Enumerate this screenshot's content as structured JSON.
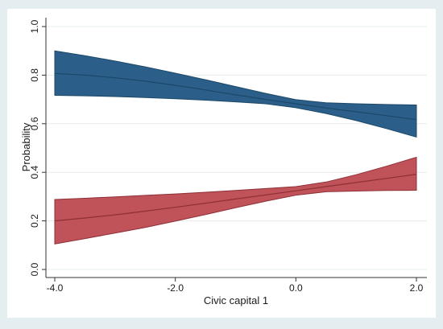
{
  "chart_data": {
    "type": "area",
    "xlabel": "Civic capital 1",
    "ylabel": "Probability",
    "xlim": [
      -4,
      2
    ],
    "ylim": [
      0,
      1
    ],
    "xticks": [
      -4,
      -2,
      0,
      2
    ],
    "xtick_labels": [
      "-4.0",
      "-2.0",
      "0.0",
      "2.0"
    ],
    "yticks": [
      0,
      0.2,
      0.4,
      0.6,
      0.8,
      1.0
    ],
    "ytick_labels": [
      "0.0",
      "0.2",
      "0.4",
      "0.6",
      "0.8",
      "1.0"
    ],
    "grid": "horizontal",
    "legend": "none",
    "x": [
      -4,
      -3.5,
      -3,
      -2.5,
      -2,
      -1.5,
      -1,
      -0.5,
      0,
      0.5,
      1,
      1.5,
      2
    ],
    "series": [
      {
        "color": "#2b5f8a",
        "line_color": "#1c4868",
        "estimate": [
          0.807,
          0.8,
          0.789,
          0.775,
          0.758,
          0.739,
          0.719,
          0.7,
          0.682,
          0.665,
          0.649,
          0.633,
          0.617
        ],
        "upper": [
          0.9,
          0.88,
          0.858,
          0.834,
          0.808,
          0.781,
          0.753,
          0.725,
          0.699,
          0.686,
          0.682,
          0.679,
          0.677
        ],
        "lower": [
          0.717,
          0.715,
          0.712,
          0.708,
          0.703,
          0.697,
          0.69,
          0.682,
          0.666,
          0.642,
          0.613,
          0.58,
          0.545
        ]
      },
      {
        "color": "#c0525a",
        "line_color": "#8e2f36",
        "estimate": [
          0.2,
          0.212,
          0.225,
          0.24,
          0.256,
          0.273,
          0.29,
          0.307,
          0.324,
          0.341,
          0.358,
          0.375,
          0.392
        ],
        "upper": [
          0.288,
          0.293,
          0.299,
          0.305,
          0.311,
          0.318,
          0.325,
          0.333,
          0.341,
          0.36,
          0.39,
          0.425,
          0.462
        ],
        "lower": [
          0.105,
          0.127,
          0.15,
          0.173,
          0.199,
          0.226,
          0.254,
          0.281,
          0.306,
          0.32,
          0.323,
          0.325,
          0.326
        ]
      }
    ]
  }
}
